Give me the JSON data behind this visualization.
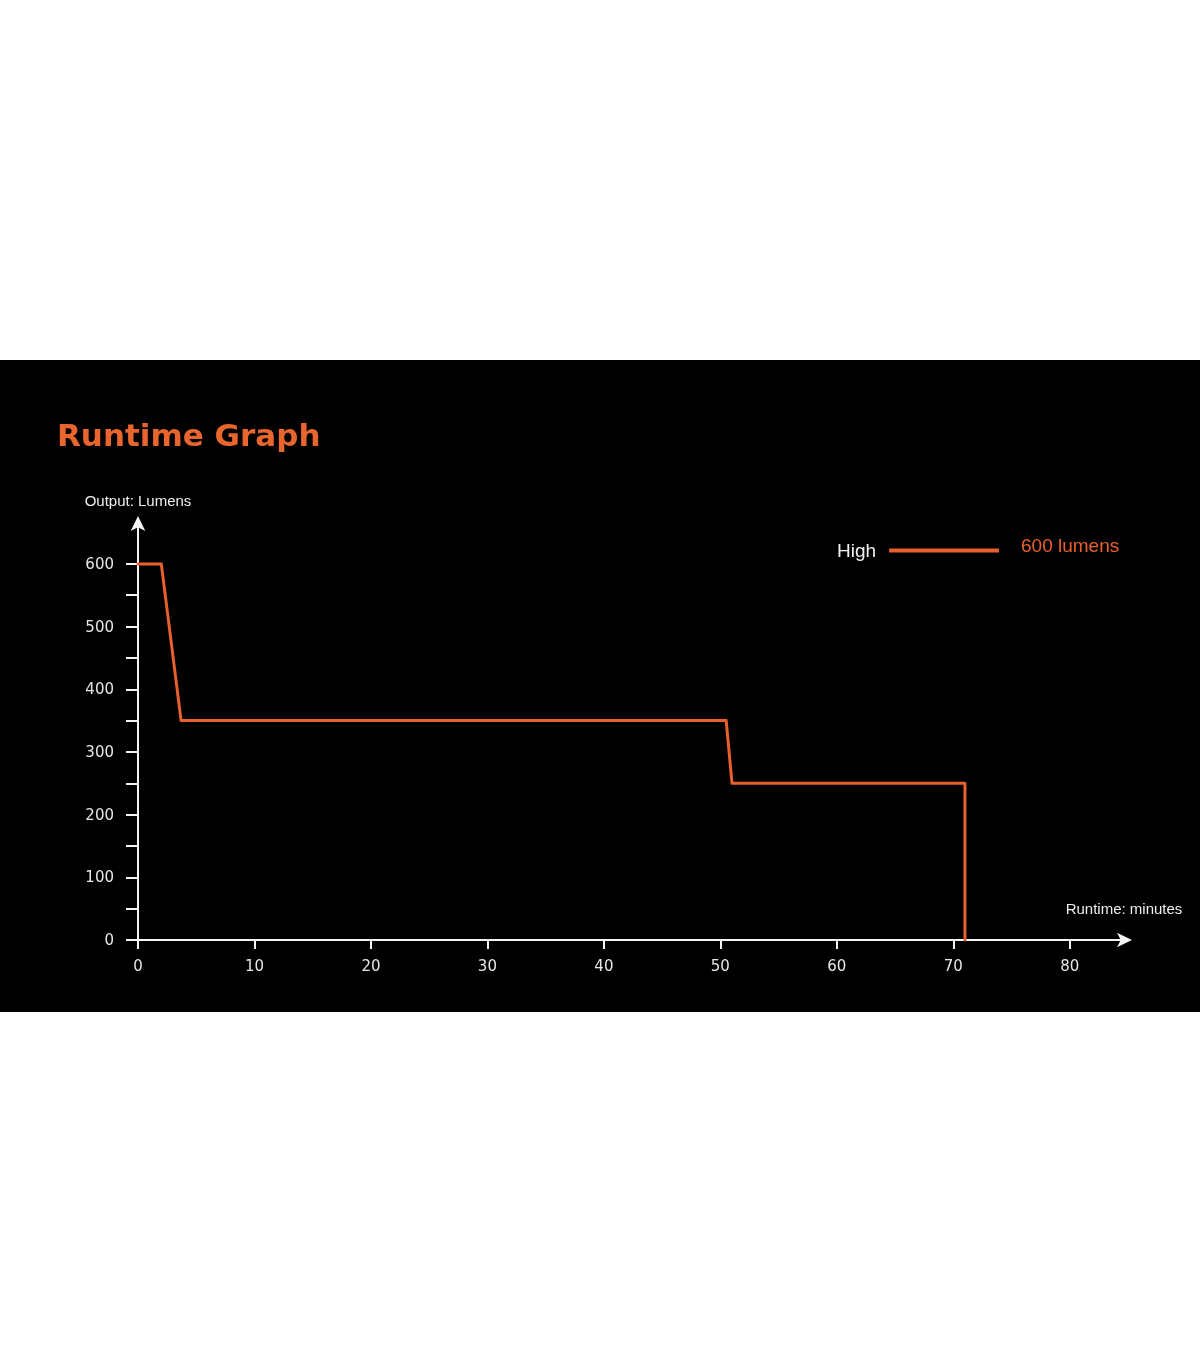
{
  "chart_data": {
    "type": "line",
    "title": "Runtime Graph",
    "xlabel": "Runtime: minutes",
    "ylabel": "Output: Lumens",
    "x": [
      0,
      2,
      3.7,
      50.5,
      51,
      71,
      71
    ],
    "series": [
      {
        "name": "High",
        "color": "#e8602c",
        "values": [
          600,
          600,
          350,
          350,
          250,
          250,
          0
        ]
      }
    ],
    "xlim": [
      0,
      85
    ],
    "ylim": [
      0,
      670
    ],
    "xticks": [
      0,
      10,
      20,
      30,
      40,
      50,
      60,
      70,
      80
    ],
    "yticks": [
      0,
      {
        "value": 50,
        "label": null
      },
      100,
      {
        "value": 150,
        "label": null
      },
      200,
      {
        "value": 250,
        "label": null
      },
      300,
      {
        "value": 350,
        "label": null
      },
      400,
      {
        "value": 450,
        "label": null
      },
      500,
      {
        "value": 550,
        "label": null
      },
      600
    ],
    "legend": "top right",
    "marker": "none",
    "line_style": "solid",
    "grid": false,
    "annotations": [
      "600 lumens"
    ]
  }
}
